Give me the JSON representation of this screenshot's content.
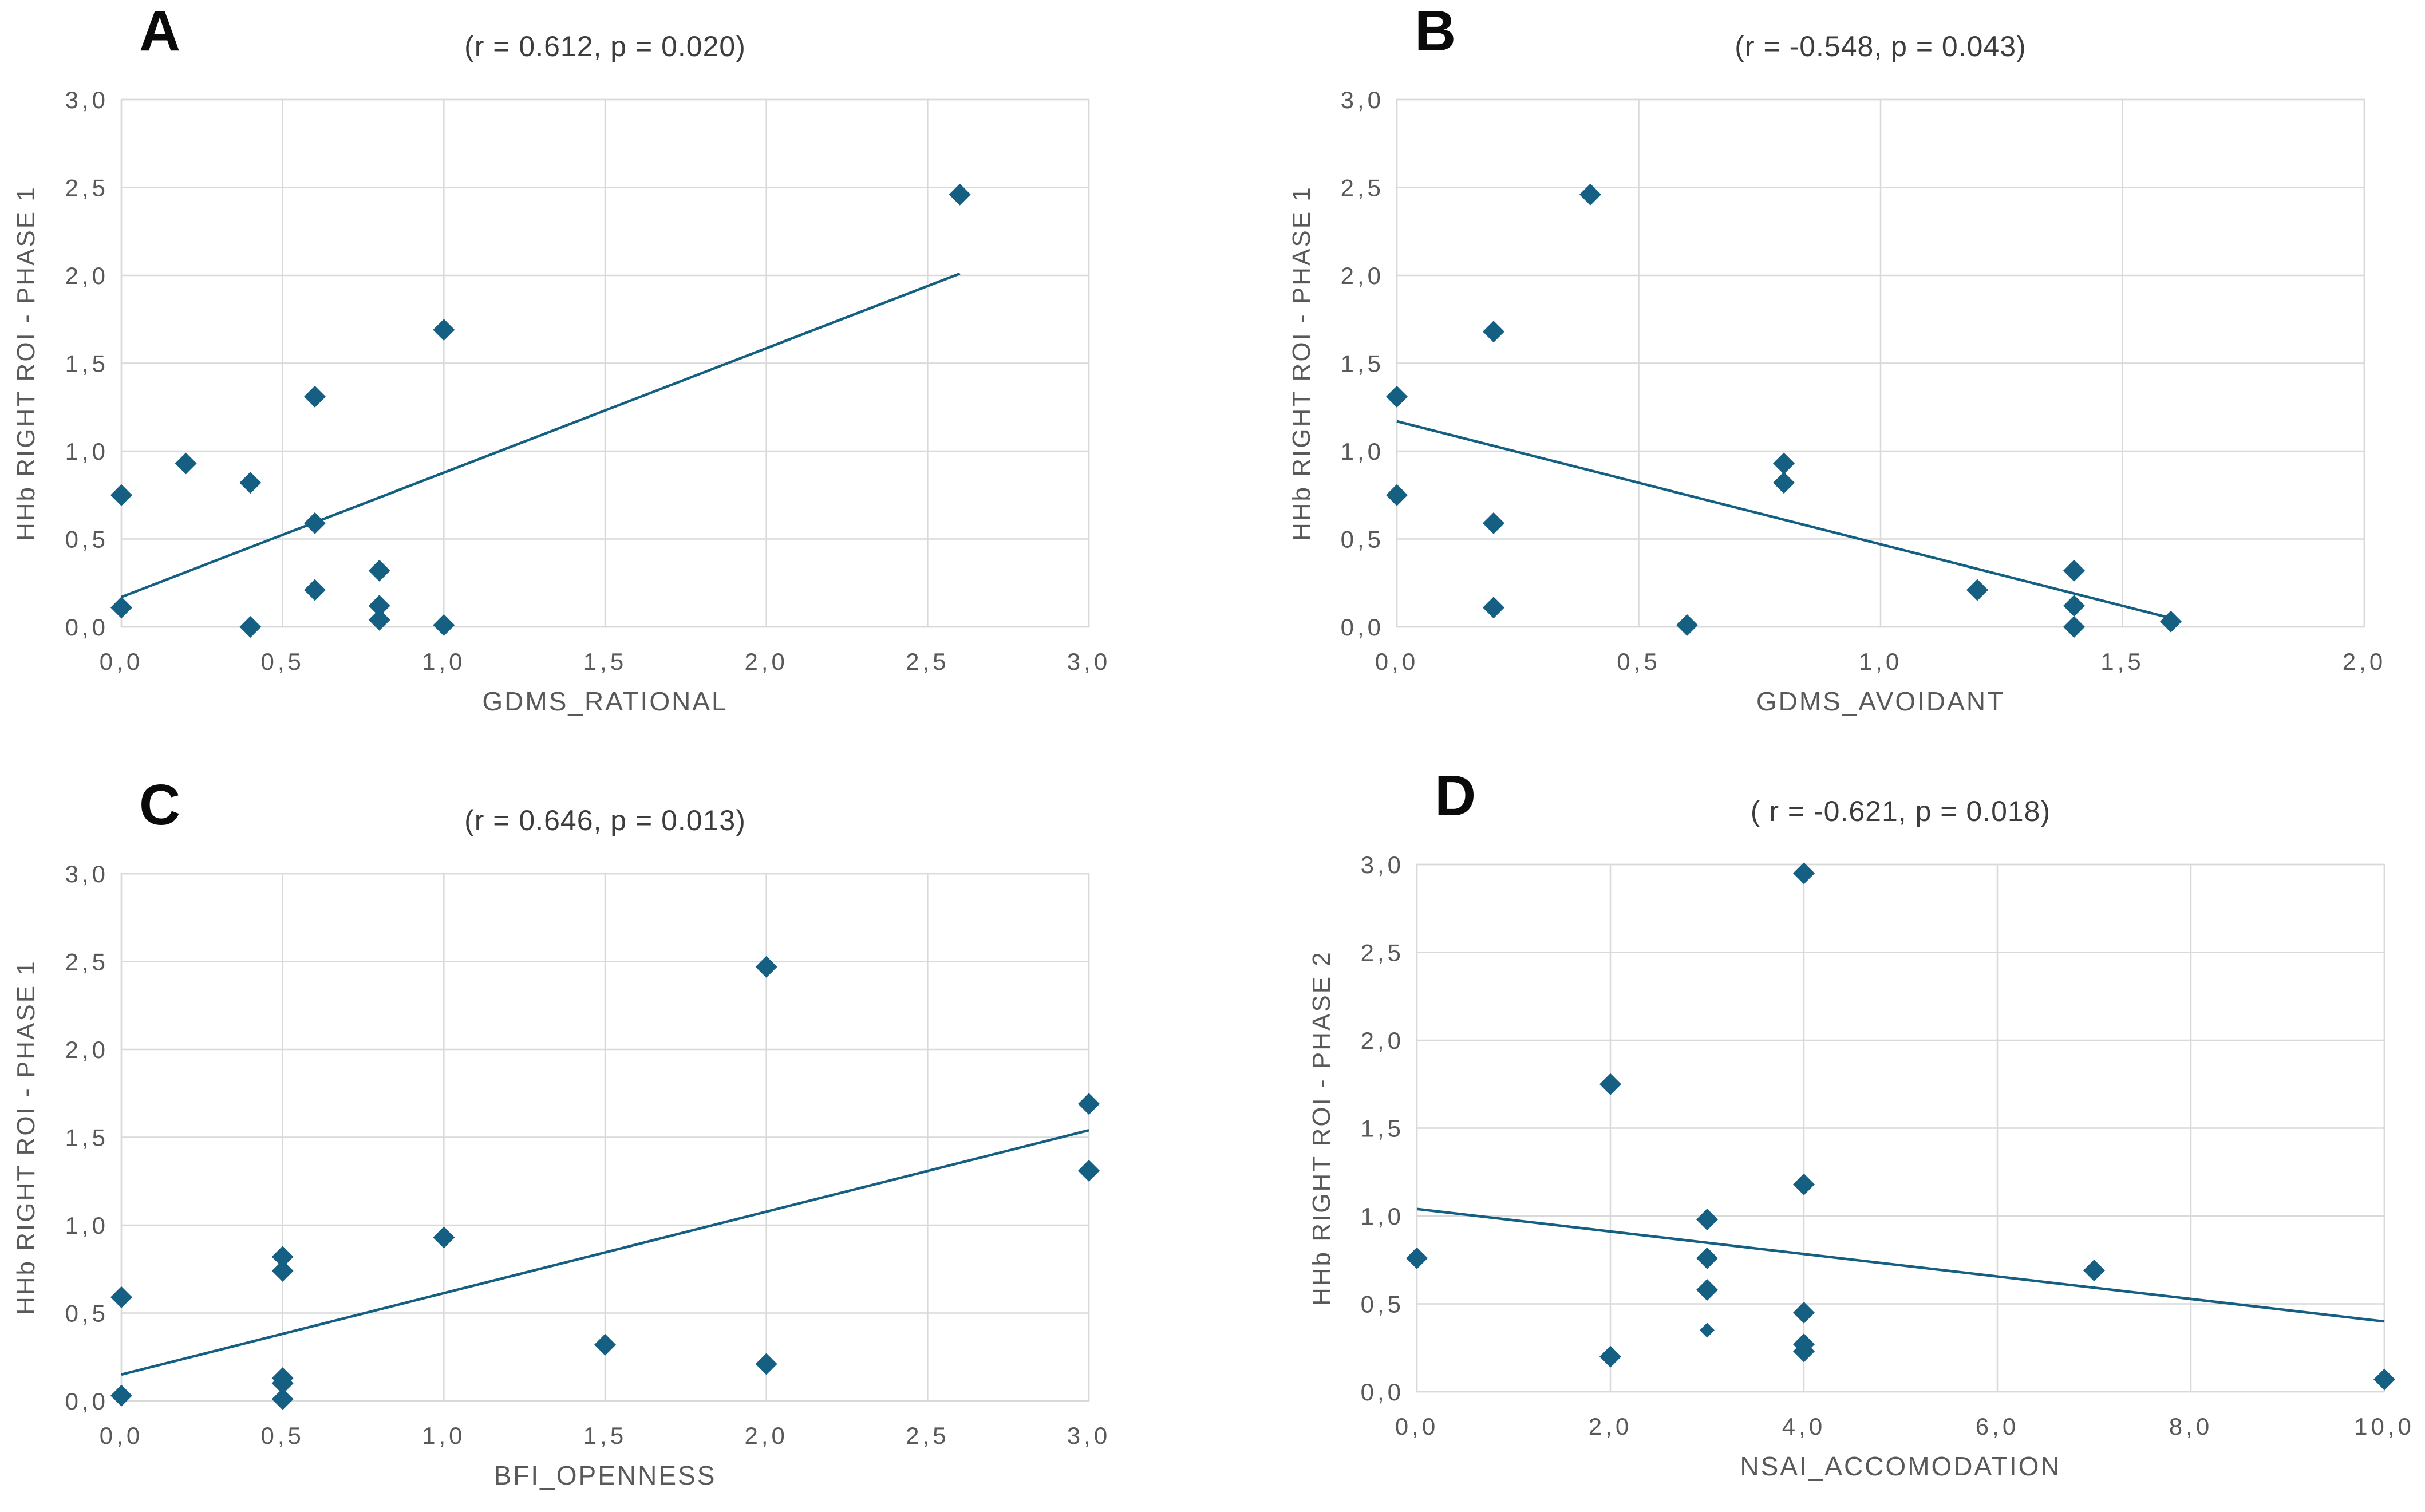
{
  "style": {
    "marker_color": "#156082",
    "trend_color": "#156082",
    "grid_color": "#d9d9d9",
    "tick_color": "#595959",
    "annotation_color": "#3d3d3d",
    "panel_letter_color": "#0a0a0a",
    "background": "#ffffff"
  },
  "chart_data": [
    {
      "type": "scatter",
      "panel_label": "A",
      "annotation": "(r = 0.612, p = 0.020)",
      "r": 0.612,
      "p": 0.02,
      "xlabel": "GDMS_RATIONAL",
      "ylabel": "HHb RIGHT ROI - PHASE 1",
      "xlim": [
        0,
        3
      ],
      "ylim": [
        0,
        3
      ],
      "grid": true,
      "legend": "none",
      "xticks": [
        0,
        0.5,
        1,
        1.5,
        2,
        2.5,
        3
      ],
      "xtick_labels": [
        "0,0",
        "0,5",
        "1,0",
        "1,5",
        "2,0",
        "2,5",
        "3,0"
      ],
      "yticks": [
        0,
        0.5,
        1,
        1.5,
        2,
        2.5,
        3
      ],
      "ytick_labels": [
        "0,0",
        "0,5",
        "1,0",
        "1,5",
        "2,0",
        "2,5",
        "3,0"
      ],
      "points": [
        [
          0,
          0.75
        ],
        [
          0,
          0.11
        ],
        [
          0.2,
          0.93
        ],
        [
          0.4,
          0.82
        ],
        [
          0.4,
          0.0
        ],
        [
          0.6,
          1.31
        ],
        [
          0.6,
          0.59
        ],
        [
          0.6,
          0.21
        ],
        [
          0.8,
          0.32
        ],
        [
          0.8,
          0.12
        ],
        [
          0.8,
          0.04
        ],
        [
          1.0,
          1.69
        ],
        [
          1.0,
          0.01
        ],
        [
          2.6,
          2.46
        ]
      ],
      "trendline": {
        "x1": 0,
        "y1": 0.17,
        "x2": 2.6,
        "y2": 2.01
      }
    },
    {
      "type": "scatter",
      "panel_label": "B",
      "annotation": "(r = -0.548, p = 0.043)",
      "r": -0.548,
      "p": 0.043,
      "xlabel": "GDMS_AVOIDANT",
      "ylabel": "HHb RIGHT ROI - PHASE 1",
      "xlim": [
        0,
        2
      ],
      "ylim": [
        0,
        3
      ],
      "grid": true,
      "legend": "none",
      "xticks": [
        0,
        0.5,
        1,
        1.5,
        2
      ],
      "xtick_labels": [
        "0,0",
        "0,5",
        "1,0",
        "1,5",
        "2,0"
      ],
      "yticks": [
        0,
        0.5,
        1,
        1.5,
        2,
        2.5,
        3
      ],
      "ytick_labels": [
        "0,0",
        "0,5",
        "1,0",
        "1,5",
        "2,0",
        "2,5",
        "3,0"
      ],
      "points": [
        [
          0,
          1.31
        ],
        [
          0,
          0.75
        ],
        [
          0.2,
          1.68
        ],
        [
          0.2,
          0.59
        ],
        [
          0.2,
          0.11
        ],
        [
          0.4,
          2.46
        ],
        [
          0.6,
          0.01
        ],
        [
          0.8,
          0.93
        ],
        [
          0.8,
          0.82
        ],
        [
          1.2,
          0.21
        ],
        [
          1.4,
          0.32
        ],
        [
          1.4,
          0.12
        ],
        [
          1.4,
          0.0
        ],
        [
          1.6,
          0.03
        ]
      ],
      "trendline": {
        "x1": 0,
        "y1": 1.17,
        "x2": 1.6,
        "y2": 0.05
      }
    },
    {
      "type": "scatter",
      "panel_label": "C",
      "annotation": "(r = 0.646, p = 0.013)",
      "r": 0.646,
      "p": 0.013,
      "xlabel": "BFI_OPENNESS",
      "ylabel": "HHb RIGHT ROI - PHASE 1",
      "xlim": [
        0,
        3
      ],
      "ylim": [
        0,
        3
      ],
      "grid": true,
      "legend": "none",
      "xticks": [
        0,
        0.5,
        1,
        1.5,
        2,
        2.5,
        3
      ],
      "xtick_labels": [
        "0,0",
        "0,5",
        "1,0",
        "1,5",
        "2,0",
        "2,5",
        "3,0"
      ],
      "yticks": [
        0,
        0.5,
        1,
        1.5,
        2,
        2.5,
        3
      ],
      "ytick_labels": [
        "0,0",
        "0,5",
        "1,0",
        "1,5",
        "2,0",
        "2,5",
        "3,0"
      ],
      "points": [
        [
          0,
          0.59
        ],
        [
          0,
          0.03
        ],
        [
          0.5,
          0.82
        ],
        [
          0.5,
          0.74
        ],
        [
          0.5,
          0.13
        ],
        [
          0.5,
          0.1
        ],
        [
          0.5,
          0.01
        ],
        [
          1.0,
          0.93
        ],
        [
          1.5,
          0.32
        ],
        [
          2.0,
          2.47
        ],
        [
          2.0,
          0.21
        ],
        [
          3.0,
          1.69
        ],
        [
          3.0,
          1.31
        ]
      ],
      "trendline": {
        "x1": 0,
        "y1": 0.15,
        "x2": 3,
        "y2": 1.54
      }
    },
    {
      "type": "scatter",
      "panel_label": "D",
      "annotation": "( r = -0.621, p = 0.018)",
      "r": -0.621,
      "p": 0.018,
      "xlabel": "NSAI_ACCOMODATION",
      "ylabel": "HHb RIGHT ROI - PHASE 2",
      "xlim": [
        0,
        10
      ],
      "ylim": [
        0,
        3
      ],
      "grid": true,
      "legend": "none",
      "xticks": [
        0,
        2,
        4,
        6,
        8,
        10
      ],
      "xtick_labels": [
        "0,0",
        "2,0",
        "4,0",
        "6,0",
        "8,0",
        "10,0"
      ],
      "yticks": [
        0,
        0.5,
        1,
        1.5,
        2,
        2.5,
        3
      ],
      "ytick_labels": [
        "0,0",
        "0,5",
        "1,0",
        "1,5",
        "2,0",
        "2,5",
        "3,0"
      ],
      "points": [
        [
          0,
          0.76
        ],
        [
          2,
          1.75
        ],
        [
          2,
          0.2
        ],
        [
          3,
          0.98
        ],
        [
          3,
          0.76
        ],
        [
          3,
          0.58
        ],
        [
          3,
          0.35,
          13
        ],
        [
          4,
          2.95
        ],
        [
          4,
          1.18
        ],
        [
          4,
          0.45
        ],
        [
          4,
          0.27
        ],
        [
          4,
          0.23
        ],
        [
          7,
          0.69
        ],
        [
          10,
          0.07
        ]
      ],
      "trendline": {
        "x1": 0,
        "y1": 1.04,
        "x2": 10,
        "y2": 0.4
      }
    }
  ]
}
